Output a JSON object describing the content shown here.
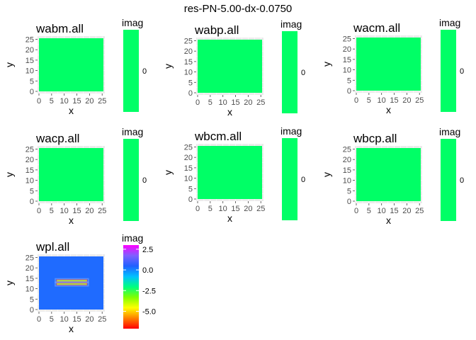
{
  "figure_title": "res-PN-5.00-dx-0.0750",
  "colors": {
    "flat_fill": "#00FF66",
    "panel_background": "#EBEBEB",
    "grid_line": "#FFFFFF",
    "wpl_background": "#1F6BFF",
    "wpl_stripe": "#9BE84B",
    "wpl_stripe_edge": "#FF5A5A"
  },
  "chart_data": [
    {
      "type": "heatmap",
      "title": "wabm.all",
      "xlabel": "x",
      "ylabel": "y",
      "x_ticks": [
        "0",
        "5",
        "10",
        "15",
        "20",
        "25"
      ],
      "y_ticks": [
        "0",
        "5",
        "10",
        "15",
        "20",
        "25"
      ],
      "xlim": [
        0,
        25.5
      ],
      "ylim": [
        0,
        25.5
      ],
      "grid": true,
      "fill_value": 0,
      "legend": {
        "title": "imag",
        "ticks": [
          "0"
        ],
        "tick_values": [
          0
        ],
        "range": [
          0,
          0
        ],
        "gradient": [
          "#00FF66"
        ]
      }
    },
    {
      "type": "heatmap",
      "title": "wabp.all",
      "xlabel": "x",
      "ylabel": "y",
      "x_ticks": [
        "0",
        "5",
        "10",
        "15",
        "20",
        "25"
      ],
      "y_ticks": [
        "0",
        "5",
        "10",
        "15",
        "20",
        "25"
      ],
      "xlim": [
        0,
        25.5
      ],
      "ylim": [
        0,
        25.5
      ],
      "grid": true,
      "fill_value": 0,
      "legend": {
        "title": "imag",
        "ticks": [
          "0"
        ],
        "tick_values": [
          0
        ],
        "range": [
          0,
          0
        ],
        "gradient": [
          "#00FF66"
        ]
      }
    },
    {
      "type": "heatmap",
      "title": "wacm.all",
      "xlabel": "x",
      "ylabel": "y",
      "x_ticks": [
        "0",
        "5",
        "10",
        "15",
        "20",
        "25"
      ],
      "y_ticks": [
        "0",
        "5",
        "10",
        "15",
        "20",
        "25"
      ],
      "xlim": [
        0,
        25.5
      ],
      "ylim": [
        0,
        25.5
      ],
      "grid": true,
      "fill_value": 0,
      "legend": {
        "title": "imag",
        "ticks": [
          "0"
        ],
        "tick_values": [
          0
        ],
        "range": [
          0,
          0
        ],
        "gradient": [
          "#00FF66"
        ]
      }
    },
    {
      "type": "heatmap",
      "title": "wacp.all",
      "xlabel": "x",
      "ylabel": "y",
      "x_ticks": [
        "0",
        "5",
        "10",
        "15",
        "20",
        "25"
      ],
      "y_ticks": [
        "0",
        "5",
        "10",
        "15",
        "20",
        "25"
      ],
      "xlim": [
        0,
        25.5
      ],
      "ylim": [
        0,
        25.5
      ],
      "grid": true,
      "fill_value": 0,
      "legend": {
        "title": "imag",
        "ticks": [
          "0"
        ],
        "tick_values": [
          0
        ],
        "range": [
          0,
          0
        ],
        "gradient": [
          "#00FF66"
        ]
      }
    },
    {
      "type": "heatmap",
      "title": "wbcm.all",
      "xlabel": "x",
      "ylabel": "y",
      "x_ticks": [
        "0",
        "5",
        "10",
        "15",
        "20",
        "25"
      ],
      "y_ticks": [
        "0",
        "5",
        "10",
        "15",
        "20",
        "25"
      ],
      "xlim": [
        0,
        25.5
      ],
      "ylim": [
        0,
        25.5
      ],
      "grid": true,
      "fill_value": 0,
      "legend": {
        "title": "imag",
        "ticks": [
          "0"
        ],
        "tick_values": [
          0
        ],
        "range": [
          0,
          0
        ],
        "gradient": [
          "#00FF66"
        ]
      }
    },
    {
      "type": "heatmap",
      "title": "wbcp.all",
      "xlabel": "x",
      "ylabel": "y",
      "x_ticks": [
        "0",
        "5",
        "10",
        "15",
        "20",
        "25"
      ],
      "y_ticks": [
        "0",
        "5",
        "10",
        "15",
        "20",
        "25"
      ],
      "xlim": [
        0,
        25.5
      ],
      "ylim": [
        0,
        25.5
      ],
      "grid": true,
      "fill_value": 0,
      "legend": {
        "title": "imag",
        "ticks": [
          "0"
        ],
        "tick_values": [
          0
        ],
        "range": [
          0,
          0
        ],
        "gradient": [
          "#00FF66"
        ]
      }
    },
    {
      "type": "heatmap",
      "title": "wpl.all",
      "xlabel": "x",
      "ylabel": "y",
      "x_ticks": [
        "0",
        "5",
        "10",
        "15",
        "20",
        "25"
      ],
      "y_ticks": [
        "0",
        "5",
        "10",
        "15",
        "20",
        "25"
      ],
      "xlim": [
        0,
        25.5
      ],
      "ylim": [
        0,
        25.5
      ],
      "grid": true,
      "fill_value": 0.6,
      "features": [
        {
          "shape": "stripe",
          "x": [
            7,
            19
          ],
          "y": [
            13.4,
            14.3
          ],
          "value": -3.5
        },
        {
          "shape": "stripe",
          "x": [
            7,
            19
          ],
          "y": [
            11.8,
            12.7
          ],
          "value": -3.5
        }
      ],
      "legend": {
        "title": "imag",
        "ticks": [
          "2.5",
          "0.0",
          "-2.5",
          "-5.0"
        ],
        "tick_values": [
          2.5,
          0.0,
          -2.5,
          -5.0
        ],
        "range": [
          -7.1,
          3.0
        ],
        "gradient": [
          "#FF0000",
          "#FF8000",
          "#FFFF00",
          "#80FF00",
          "#00FF80",
          "#00C0FF",
          "#2060FF",
          "#8060FF",
          "#FF00FF"
        ]
      }
    }
  ]
}
